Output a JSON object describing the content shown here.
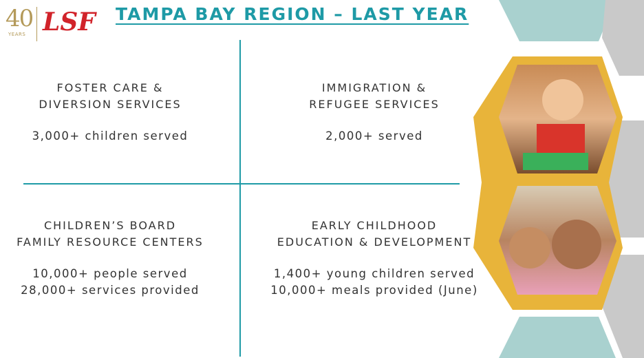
{
  "logo": {
    "anniversary": "40",
    "years_label": "YEARS",
    "brand": "LSF"
  },
  "title": "TAMPA BAY REGION – LAST YEAR",
  "quadrants": [
    {
      "heading": [
        "FOSTER CARE &",
        "DIVERSION SERVICES"
      ],
      "stats": [
        "3,000+ children served"
      ]
    },
    {
      "heading": [
        "IMMIGRATION &",
        "REFUGEE SERVICES"
      ],
      "stats": [
        "2,000+ served"
      ]
    },
    {
      "heading": [
        "CHILDREN’S BOARD",
        "FAMILY RESOURCE CENTERS"
      ],
      "stats": [
        "10,000+ people served",
        "28,000+ services provided"
      ]
    },
    {
      "heading": [
        "EARLY CHILDHOOD",
        "EDUCATION & DEVELOPMENT"
      ],
      "stats": [
        "1,400+ young children served",
        "10,000+ meals provided (June)"
      ]
    }
  ],
  "colors": {
    "accent": "#1e9aa6",
    "brand_red": "#d1232a",
    "gold": "#e8b43a",
    "gold_logo": "#b49a5a",
    "grey_hex": "#c9c9c9",
    "teal_hex": "#a9d1cf"
  }
}
